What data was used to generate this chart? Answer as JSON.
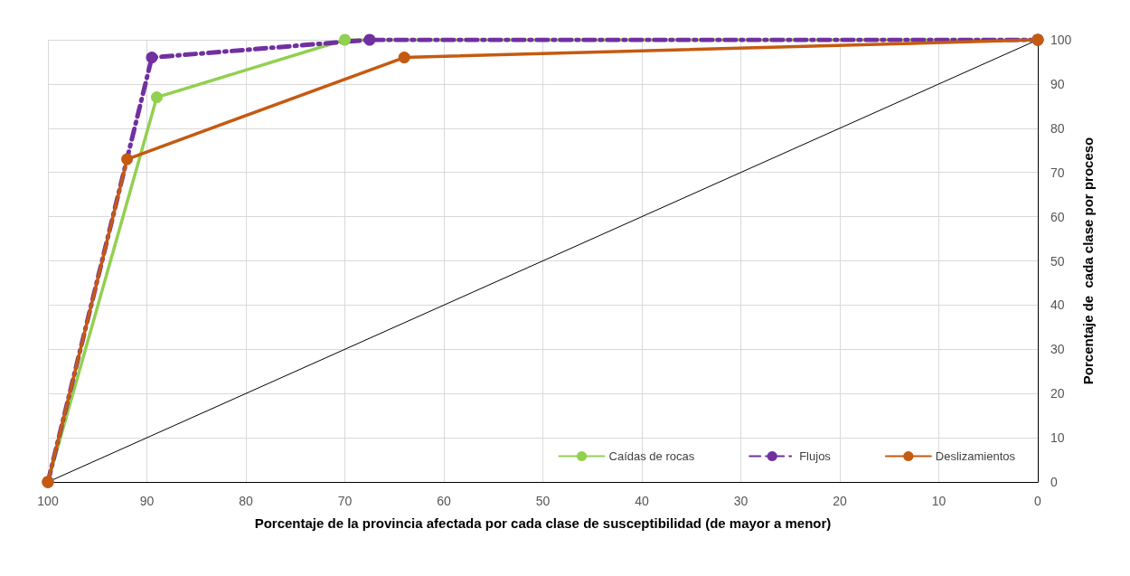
{
  "chart_data": {
    "type": "line",
    "xlabel": "Porcentaje de la provincia afectada por cada clase de susceptibilidad (de mayor a menor)",
    "ylabel": "Porcentaje de  cada clase por proceso",
    "xlim": [
      100,
      0
    ],
    "xticks": [
      100,
      90,
      80,
      70,
      60,
      50,
      40,
      30,
      20,
      10,
      0
    ],
    "ylim": [
      0,
      100
    ],
    "yticks": [
      0,
      10,
      20,
      30,
      40,
      50,
      60,
      70,
      80,
      90,
      100
    ],
    "grid": true,
    "legend": "bottom right",
    "marker": "circle",
    "series": [
      {
        "color": "#000000",
        "marker": "none",
        "x": [
          100,
          0
        ],
        "values": [
          0,
          100
        ]
      },
      {
        "name": "Caídas de rocas",
        "color": "#92d050",
        "x": [
          100,
          89,
          70,
          0
        ],
        "values": [
          0,
          87,
          100,
          100
        ]
      },
      {
        "name": "Flujos",
        "color": "#7030a0",
        "line_style": "dashed",
        "x": [
          100,
          89.5,
          67.5,
          0
        ],
        "values": [
          0,
          96,
          100,
          100
        ]
      },
      {
        "name": "Deslizamientos",
        "color": "#c55a11",
        "x": [
          100,
          92,
          64,
          0
        ],
        "values": [
          0,
          73,
          96,
          100
        ]
      }
    ]
  }
}
